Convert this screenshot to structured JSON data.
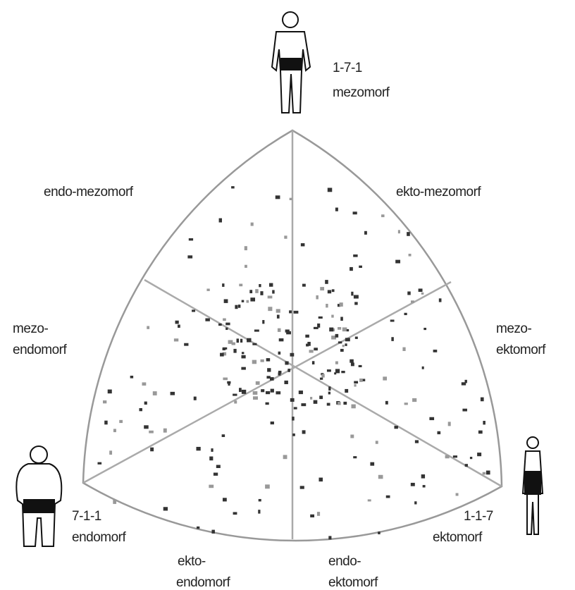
{
  "labels": {
    "top": {
      "code": "1-7-1",
      "name": "mezomorf"
    },
    "endo_mezomorf": "endo-mezomorf",
    "ekto_mezomorf": "ekto-mezomorf",
    "mezo_endomorf": [
      "mezo-",
      "endomorf"
    ],
    "mezo_ektomorf": [
      "mezo-",
      "ektomorf"
    ],
    "bottom_left": {
      "code": "7-1-1",
      "name": "endomorf"
    },
    "bottom_right": {
      "code": "1-1-7",
      "name": "ektomorf"
    },
    "ekto_endomorf": [
      "ekto-",
      "endomorf"
    ],
    "endo_ektomorf": [
      "endo-",
      "ektomorf"
    ]
  }
}
